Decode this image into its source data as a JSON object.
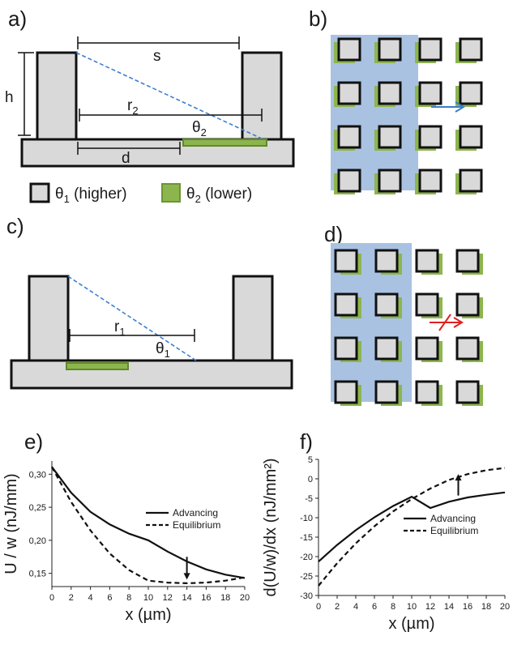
{
  "panels": {
    "a": {
      "label": "a)",
      "s": "s",
      "h": "h",
      "d": "d",
      "r": "r",
      "r_sub": "2",
      "theta": "θ",
      "theta_sub": "2"
    },
    "b": {
      "label": "b)"
    },
    "c": {
      "label": "c)",
      "r": "r",
      "r_sub": "1",
      "theta": "θ",
      "theta_sub": "1"
    },
    "d": {
      "label": "d)"
    },
    "e": {
      "label": "e)"
    },
    "f": {
      "label": "f)"
    }
  },
  "legend": {
    "theta1_sym": "θ",
    "theta1_sub": "1",
    "theta1_text": " (higher)",
    "theta2_sym": "θ",
    "theta2_sub": "2",
    "theta2_text": " (lower)"
  },
  "colors": {
    "post_fill": "#d9d9d9",
    "post_stroke": "#111111",
    "green": "#7aa33d",
    "green_fill": "#8db54e",
    "liquid": "#a9c2e2",
    "dash_blue": "#3f7fd0",
    "advance_arrow": "#3a7cc5",
    "blocked_arrow": "#e02020"
  },
  "chart_data": [
    {
      "type": "line",
      "panel": "e",
      "xlabel": "x (µm)",
      "ylabel": "U / w (nJ/mm)",
      "xlim": [
        0,
        20
      ],
      "ylim": [
        0.13,
        0.32
      ],
      "xticks": [
        "0",
        "2",
        "4",
        "6",
        "8",
        "10",
        "12",
        "14",
        "16",
        "18",
        "20"
      ],
      "yticks": [
        "0,15",
        "0,20",
        "0,25",
        "0,30"
      ],
      "ytick_values": [
        0.15,
        0.2,
        0.25,
        0.3
      ],
      "legend_position": "right",
      "annotation": "down-arrow at x≈14",
      "series": [
        {
          "name": "Advancing",
          "style": "solid",
          "x": [
            0,
            2,
            4,
            6,
            8,
            10,
            12,
            14,
            16,
            18,
            20
          ],
          "y": [
            0.311,
            0.272,
            0.243,
            0.224,
            0.21,
            0.2,
            0.183,
            0.168,
            0.156,
            0.148,
            0.143
          ]
        },
        {
          "name": "Equilibrium",
          "style": "dashed",
          "x": [
            0,
            2,
            4,
            6,
            8,
            10,
            12,
            14,
            16,
            18,
            20
          ],
          "y": [
            0.311,
            0.258,
            0.215,
            0.18,
            0.155,
            0.139,
            0.136,
            0.135,
            0.136,
            0.139,
            0.144
          ]
        }
      ]
    },
    {
      "type": "line",
      "panel": "f",
      "xlabel": "x (µm)",
      "ylabel": "d(U/w)/dx (nJ/mm²)",
      "xlim": [
        0,
        20
      ],
      "ylim": [
        -30,
        5
      ],
      "xticks": [
        "0",
        "2",
        "4",
        "6",
        "8",
        "10",
        "12",
        "14",
        "16",
        "18",
        "20"
      ],
      "yticks": [
        "-30",
        "-25",
        "-20",
        "-15",
        "-10",
        "-5",
        "0",
        "5"
      ],
      "ytick_values": [
        -30,
        -25,
        -20,
        -15,
        -10,
        -5,
        0,
        5
      ],
      "legend_position": "lower-right",
      "annotation": "up-arrow at x≈15",
      "series": [
        {
          "name": "Advancing",
          "style": "solid",
          "x": [
            0,
            2,
            4,
            6,
            8,
            10,
            12,
            14,
            16,
            18,
            20
          ],
          "y": [
            -21.3,
            -17.0,
            -13.2,
            -9.9,
            -7.0,
            -4.6,
            -7.5,
            -5.9,
            -4.8,
            -4.1,
            -3.5
          ]
        },
        {
          "name": "Equilibrium",
          "style": "dashed",
          "x": [
            0,
            2,
            4,
            6,
            8,
            10,
            12,
            14,
            16,
            18,
            20
          ],
          "y": [
            -27.5,
            -21.7,
            -16.6,
            -12.2,
            -8.4,
            -5.2,
            -2.5,
            -0.3,
            1.2,
            2.2,
            2.8
          ]
        }
      ]
    }
  ]
}
